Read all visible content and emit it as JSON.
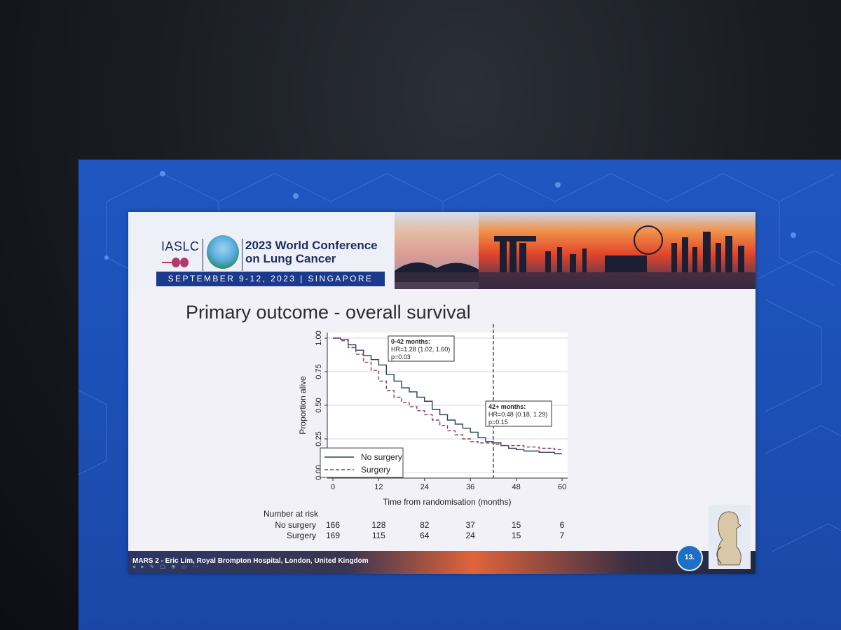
{
  "slide": {
    "org": "IASLC",
    "conference_title_1": "2023 World Conference",
    "conference_title_2": "on Lung Cancer",
    "dates": "SEPTEMBER 9-12, 2023 | SINGAPORE",
    "title": "Primary outcome - overall survival",
    "footer": "MARS 2 - Eric Lim, Royal Brompton Hospital, London, United Kingdom",
    "page_number": "13."
  },
  "risk_table": {
    "header": "Number at risk",
    "rows": [
      {
        "label": "No surgery",
        "values": [
          "166",
          "128",
          "82",
          "37",
          "15",
          "6"
        ]
      },
      {
        "label": "Surgery",
        "values": [
          "169",
          "115",
          "64",
          "24",
          "15",
          "7"
        ]
      }
    ]
  },
  "chart_data": {
    "type": "line",
    "xlabel": "Time from randomisation (months)",
    "ylabel": "Proportion alive",
    "xlim": [
      0,
      60
    ],
    "ylim": [
      0,
      1
    ],
    "xticks": [
      "0",
      "12",
      "24",
      "36",
      "48",
      "60"
    ],
    "yticks": [
      "0.00",
      "0.25",
      "0.50",
      "0.75",
      "1.00"
    ],
    "grid": true,
    "legend_position": "bottom-left",
    "reference_line_x": 42,
    "series": [
      {
        "name": "No surgery",
        "color": "#2b3f5c",
        "style": "solid",
        "x": [
          0,
          2,
          4,
          6,
          8,
          10,
          12,
          14,
          16,
          18,
          20,
          22,
          24,
          26,
          28,
          30,
          32,
          34,
          36,
          38,
          40,
          42,
          44,
          46,
          48,
          50,
          52,
          54,
          56,
          58,
          60
        ],
        "y": [
          1.0,
          0.99,
          0.95,
          0.91,
          0.87,
          0.84,
          0.8,
          0.73,
          0.68,
          0.63,
          0.6,
          0.56,
          0.53,
          0.47,
          0.43,
          0.39,
          0.36,
          0.33,
          0.3,
          0.26,
          0.23,
          0.22,
          0.2,
          0.18,
          0.17,
          0.16,
          0.16,
          0.15,
          0.15,
          0.14,
          0.14
        ]
      },
      {
        "name": "Surgery",
        "color": "#8c3d5a",
        "style": "dashed",
        "x": [
          0,
          2,
          4,
          6,
          8,
          10,
          12,
          14,
          16,
          18,
          20,
          22,
          24,
          26,
          28,
          30,
          32,
          34,
          36,
          38,
          40,
          42,
          44,
          46,
          48,
          50,
          52,
          54,
          56,
          58,
          60
        ],
        "y": [
          1.0,
          0.98,
          0.93,
          0.88,
          0.82,
          0.76,
          0.68,
          0.61,
          0.56,
          0.52,
          0.49,
          0.46,
          0.43,
          0.39,
          0.35,
          0.31,
          0.28,
          0.25,
          0.23,
          0.22,
          0.22,
          0.21,
          0.2,
          0.2,
          0.2,
          0.19,
          0.19,
          0.18,
          0.18,
          0.17,
          0.16
        ]
      }
    ],
    "annotations": [
      {
        "id": "early",
        "lines": [
          "0-42 months:",
          "HR=1.28 (1.02, 1.60)",
          "p=0.03"
        ]
      },
      {
        "id": "late",
        "lines": [
          "42+ months:",
          "HR=0.48 (0.18, 1.29)",
          "p=0.15"
        ]
      }
    ]
  },
  "colors": {
    "screen_blue": "#1f56c0",
    "banner_navy": "#1b3a8c",
    "no_surgery": "#2b3f5c",
    "surgery": "#8c3d5a"
  }
}
